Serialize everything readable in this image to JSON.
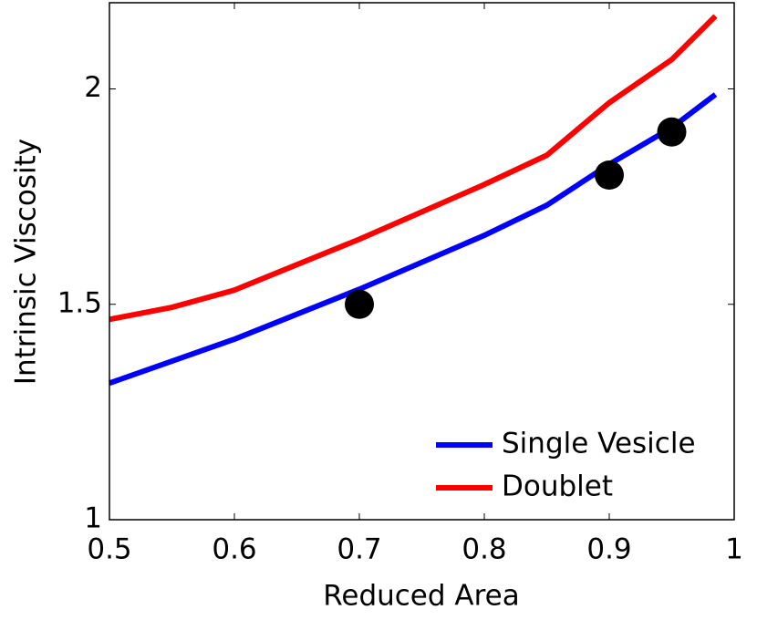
{
  "chart_data": {
    "type": "line",
    "x_label": "Reduced Area",
    "y_label": "Intrinsic Viscosity",
    "xlim": [
      0.5,
      1
    ],
    "ylim": [
      1,
      2.2
    ],
    "xticks": [
      0.5,
      0.6,
      0.7,
      0.8,
      0.9,
      1
    ],
    "yticks": [
      1,
      1.5,
      2
    ],
    "legend": "lower-right",
    "series": [
      {
        "name": "Single Vesicle",
        "color": "#0000ff",
        "style": "line",
        "x": [
          0.5,
          0.6,
          0.7,
          0.8,
          0.85,
          0.9,
          0.95,
          0.985
        ],
        "values": [
          1.317,
          1.419,
          1.535,
          1.66,
          1.73,
          1.825,
          1.91,
          1.987
        ]
      },
      {
        "name": "Doublet",
        "color": "#ff0000",
        "style": "line",
        "x": [
          0.5,
          0.55,
          0.6,
          0.7,
          0.8,
          0.85,
          0.9,
          0.95,
          0.985
        ],
        "values": [
          1.465,
          1.493,
          1.533,
          1.651,
          1.778,
          1.846,
          1.968,
          2.068,
          2.169
        ]
      },
      {
        "color": "#000000",
        "style": "marker",
        "x": [
          0.7,
          0.9,
          0.95
        ],
        "values": [
          1.5,
          1.8,
          1.9
        ]
      }
    ]
  }
}
